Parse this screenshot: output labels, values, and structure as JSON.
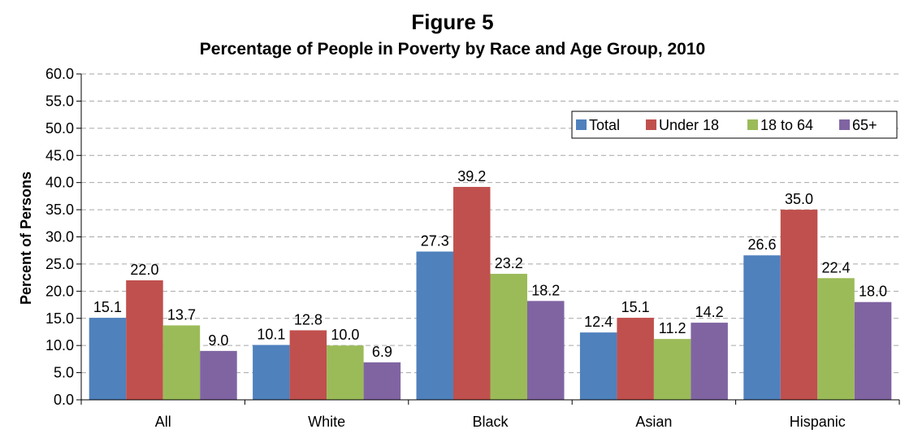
{
  "chart_data": {
    "type": "bar",
    "title": "Figure 5",
    "subtitle": "Percentage of People in Poverty by Race and Age Group, 2010",
    "xlabel": "",
    "ylabel": "Percent of Persons",
    "ylim": [
      0,
      60
    ],
    "ytick_step": 5,
    "ytick_labels": [
      "0.0",
      "5.0",
      "10.0",
      "15.0",
      "20.0",
      "25.0",
      "30.0",
      "35.0",
      "40.0",
      "45.0",
      "50.0",
      "55.0",
      "60.0"
    ],
    "grid": true,
    "legend_position": "top-right",
    "categories": [
      "All",
      "White",
      "Black",
      "Asian",
      "Hispanic"
    ],
    "series": [
      {
        "name": "Total",
        "color": "#4F81BD",
        "values": [
          15.1,
          10.1,
          27.3,
          12.4,
          26.6
        ],
        "labels": [
          "15.1",
          "10.1",
          "27.3",
          "12.4",
          "26.6"
        ]
      },
      {
        "name": "Under 18",
        "color": "#C0504D",
        "values": [
          22.0,
          12.8,
          39.2,
          15.1,
          35.0
        ],
        "labels": [
          "22.0",
          "12.8",
          "39.2",
          "15.1",
          "35.0"
        ]
      },
      {
        "name": "18 to 64",
        "color": "#9BBB59",
        "values": [
          13.7,
          10.0,
          23.2,
          11.2,
          22.4
        ],
        "labels": [
          "13.7",
          "10.0",
          "23.2",
          "11.2",
          "22.4"
        ]
      },
      {
        "name": "65+",
        "color": "#8064A2",
        "values": [
          9.0,
          6.9,
          18.2,
          14.2,
          18.0
        ],
        "labels": [
          "9.0",
          "6.9",
          "18.2",
          "14.2",
          "18.0"
        ]
      }
    ]
  }
}
